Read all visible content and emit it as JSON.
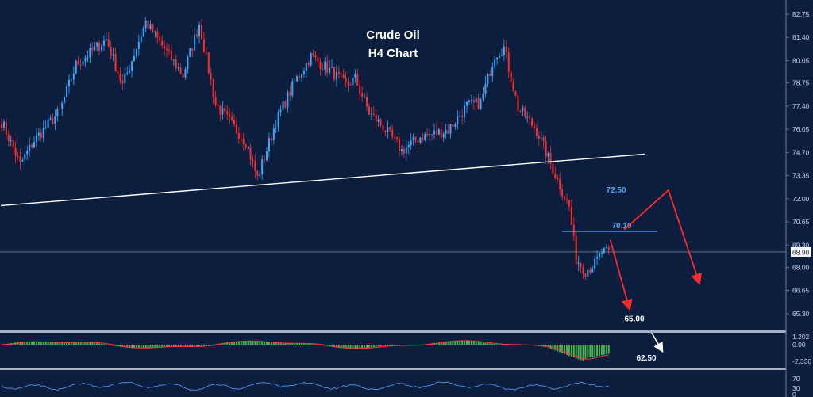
{
  "chart_data": {
    "type": "candlestick",
    "title_line1": "Crude Oil",
    "title_line2": "H4 Chart",
    "price_axis": {
      "ticks": [
        "82.75",
        "81.40",
        "80.05",
        "78.75",
        "77.40",
        "76.05",
        "74.70",
        "73.35",
        "72.00",
        "70.65",
        "69.30",
        "68.00",
        "66.65",
        "65.30"
      ],
      "ylim": [
        64.65,
        83.35
      ]
    },
    "current_price": "68.90",
    "levels": [
      {
        "label": "72.50",
        "value": 72.5,
        "style": "blue-text"
      },
      {
        "label": "70.10",
        "value": 70.1,
        "style": "blue-line"
      },
      {
        "label": "65.00",
        "value": 65.0,
        "style": "white-text"
      },
      {
        "label": "62.50",
        "value": 62.5,
        "style": "white-text"
      }
    ],
    "trendline": {
      "color": "#ffffff",
      "start": [
        0,
        71.6
      ],
      "end": [
        270,
        74.6
      ]
    },
    "projection": {
      "red_path": [
        [
          268,
          70.2
        ],
        [
          287,
          72.5
        ],
        [
          300,
          67.2
        ]
      ],
      "red_arrow_2": [
        [
          262,
          69.6
        ],
        [
          270,
          65.7
        ]
      ],
      "white_arrow": [
        [
          272,
          65.1
        ],
        [
          278,
          63.7
        ]
      ]
    },
    "series": {
      "bars": 262,
      "anchors": [
        [
          0,
          76.5
        ],
        [
          8,
          74.0
        ],
        [
          14,
          75.4
        ],
        [
          25,
          77.1
        ],
        [
          32,
          79.8
        ],
        [
          45,
          81.3
        ],
        [
          52,
          78.6
        ],
        [
          62,
          82.3
        ],
        [
          68,
          81.1
        ],
        [
          78,
          79.2
        ],
        [
          85,
          82.2
        ],
        [
          92,
          77.5
        ],
        [
          105,
          75.3
        ],
        [
          110,
          73.2
        ],
        [
          118,
          76.5
        ],
        [
          126,
          78.8
        ],
        [
          133,
          80.3
        ],
        [
          142,
          79.4
        ],
        [
          148,
          78.6
        ],
        [
          152,
          79.0
        ],
        [
          158,
          77.0
        ],
        [
          164,
          76.2
        ],
        [
          172,
          74.8
        ],
        [
          180,
          75.6
        ],
        [
          192,
          76.0
        ],
        [
          200,
          77.4
        ],
        [
          206,
          77.6
        ],
        [
          212,
          80.4
        ],
        [
          216,
          80.8
        ],
        [
          222,
          77.3
        ],
        [
          230,
          76.0
        ],
        [
          238,
          73.4
        ],
        [
          244,
          71.5
        ],
        [
          247,
          68.5
        ],
        [
          251,
          67.8
        ],
        [
          255,
          68.2
        ],
        [
          258,
          68.9
        ]
      ]
    },
    "macd": {
      "ticks": [
        "1.202",
        "0.00",
        "-2.336"
      ]
    },
    "rsi": {
      "ticks": [
        "70",
        "30",
        "0"
      ]
    },
    "colors": {
      "background": "#0b1e3d",
      "bull": "#35a9ff",
      "bear": "#ff2b2b",
      "macd_hist": "#4caf50",
      "signal_line": "#ff3b3b",
      "rsi_line": "#5aa0ff",
      "level_blue": "#4da3ff",
      "projection_red": "#ff2b2b"
    }
  }
}
